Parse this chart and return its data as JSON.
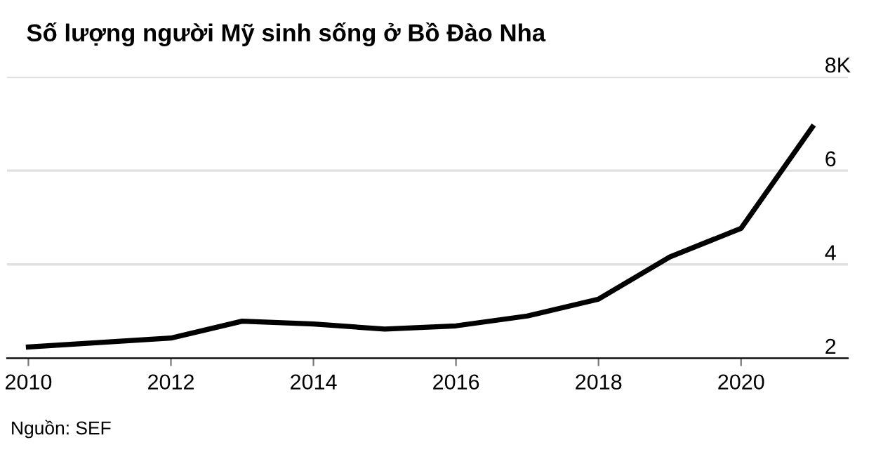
{
  "chart_data": {
    "type": "line",
    "title": "Số lượng người Mỹ sinh sống ở Bồ Đào Nha",
    "x": [
      2010,
      2012,
      2013,
      2014,
      2015,
      2016,
      2017,
      2018,
      2019,
      2020,
      2021
    ],
    "series": [
      {
        "color": "#000000",
        "values": [
          2.24,
          2.43,
          2.79,
          2.73,
          2.62,
          2.69,
          2.9,
          3.26,
          4.16,
          4.77,
          6.93
        ]
      }
    ],
    "xlim": [
      2009.7,
      2021.5
    ],
    "xticks": [
      2010,
      2012,
      2014,
      2016,
      2018,
      2020
    ],
    "ylim": [
      2,
      8
    ],
    "yticks": [
      2,
      4,
      6,
      {
        "value": 8,
        "label": "8K"
      }
    ],
    "grid": "y",
    "legend": false,
    "marker": "none",
    "line_style": "solid",
    "annotations": [
      "Nguồn: SEF"
    ]
  }
}
